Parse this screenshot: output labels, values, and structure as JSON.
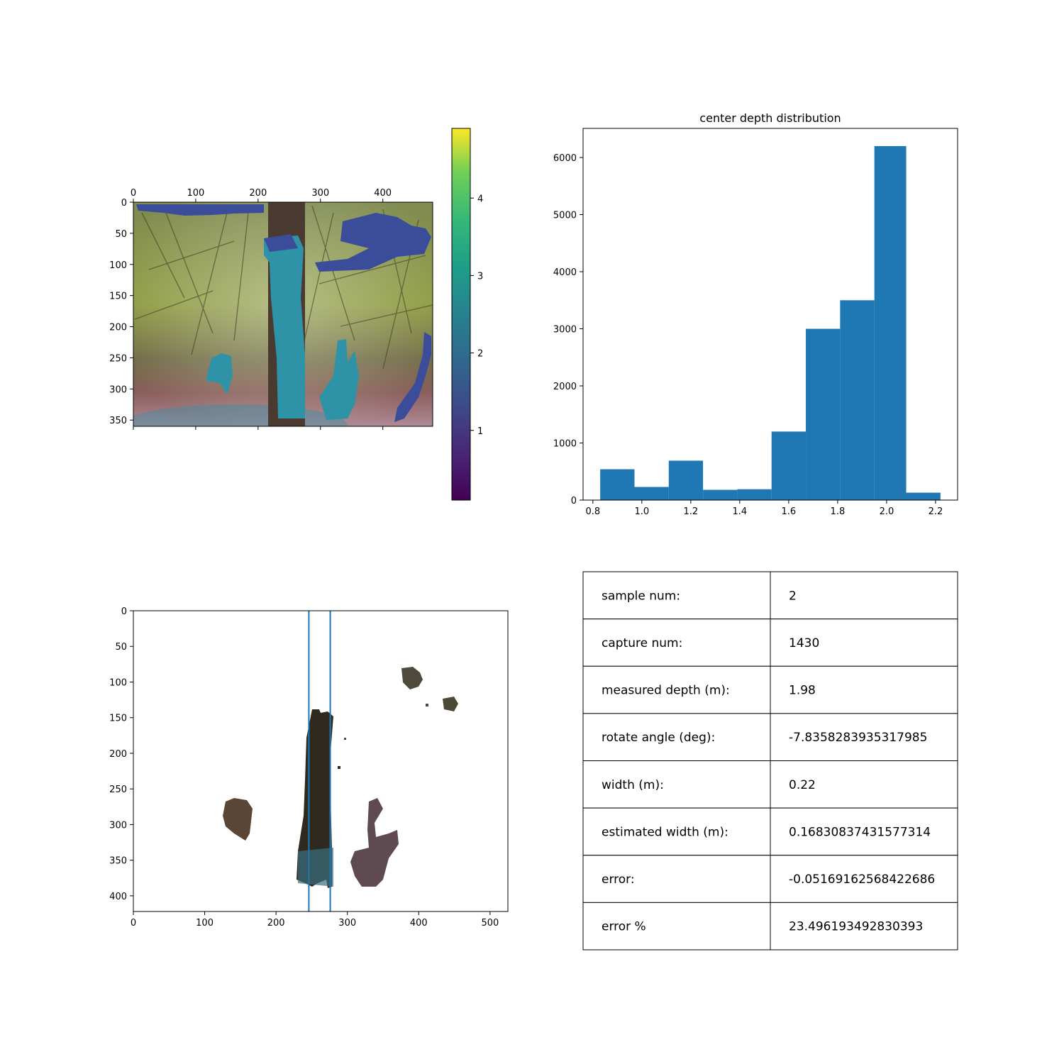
{
  "colors": {
    "bar": "#1f77b4",
    "line": "#1f77b4",
    "depth_overlay_low": "#3b4d9a",
    "depth_overlay_mid": "#2e93a6",
    "tree_trunk": "#4a3a30",
    "foliage": "#8a9a3a"
  },
  "chart_data": [
    {
      "type": "heatmap",
      "description_kind": "image-overlay",
      "x_ticks": [
        "0",
        "100",
        "200",
        "300",
        "400"
      ],
      "x_tick_values": [
        0,
        100,
        200,
        300,
        400
      ],
      "y_ticks": [
        "0",
        "50",
        "100",
        "150",
        "200",
        "250",
        "300",
        "350"
      ],
      "y_tick_values": [
        0,
        50,
        100,
        150,
        200,
        250,
        300,
        350
      ],
      "xlim": [
        0,
        480
      ],
      "ylim": [
        360,
        0
      ],
      "colorbar": {
        "colormap": "viridis",
        "ticks": [
          "1",
          "2",
          "3",
          "4"
        ],
        "tick_values": [
          1,
          2,
          3,
          4
        ],
        "range": [
          0.1,
          4.9
        ]
      }
    },
    {
      "type": "bar",
      "title": "center depth distribution",
      "bins": [
        [
          0.83,
          0.97,
          540
        ],
        [
          0.97,
          1.11,
          230
        ],
        [
          1.11,
          1.25,
          690
        ],
        [
          1.25,
          1.39,
          180
        ],
        [
          1.39,
          1.53,
          190
        ],
        [
          1.53,
          1.67,
          1200
        ],
        [
          1.67,
          1.81,
          3000
        ],
        [
          1.81,
          1.95,
          3500
        ],
        [
          1.95,
          2.08,
          6200
        ],
        [
          2.08,
          2.22,
          130
        ]
      ],
      "x_ticks": [
        "0.8",
        "1.0",
        "1.2",
        "1.4",
        "1.6",
        "1.8",
        "2.0",
        "2.2"
      ],
      "x_tick_values": [
        0.8,
        1.0,
        1.2,
        1.4,
        1.6,
        1.8,
        2.0,
        2.2
      ],
      "y_ticks": [
        "0",
        "1000",
        "2000",
        "3000",
        "4000",
        "5000",
        "6000"
      ],
      "y_tick_values": [
        0,
        1000,
        2000,
        3000,
        4000,
        5000,
        6000
      ],
      "xlim": [
        0.76,
        2.29
      ],
      "ylim": [
        0,
        6510
      ]
    },
    {
      "type": "scatter",
      "description_kind": "point-cloud-with-lines",
      "x_ticks": [
        "0",
        "100",
        "200",
        "300",
        "400",
        "500"
      ],
      "x_tick_values": [
        0,
        100,
        200,
        300,
        400,
        500
      ],
      "y_ticks": [
        "0",
        "50",
        "100",
        "150",
        "200",
        "250",
        "300",
        "350",
        "400"
      ],
      "y_tick_values": [
        0,
        50,
        100,
        150,
        200,
        250,
        300,
        350,
        400
      ],
      "xlim": [
        0,
        525
      ],
      "ylim": [
        422,
        0
      ],
      "vertical_lines": [
        246,
        276
      ]
    },
    {
      "type": "table",
      "rows": [
        [
          "sample num:",
          "2"
        ],
        [
          "capture num:",
          "1430"
        ],
        [
          "measured depth (m):",
          "1.98"
        ],
        [
          "rotate angle (deg):",
          "-7.8358283935317985"
        ],
        [
          "width (m):",
          "0.22"
        ],
        [
          "estimated width (m):",
          "0.16830837431577314"
        ],
        [
          "error:",
          "-0.05169162568422686"
        ],
        [
          "error %",
          "23.496193492830393"
        ]
      ]
    }
  ]
}
